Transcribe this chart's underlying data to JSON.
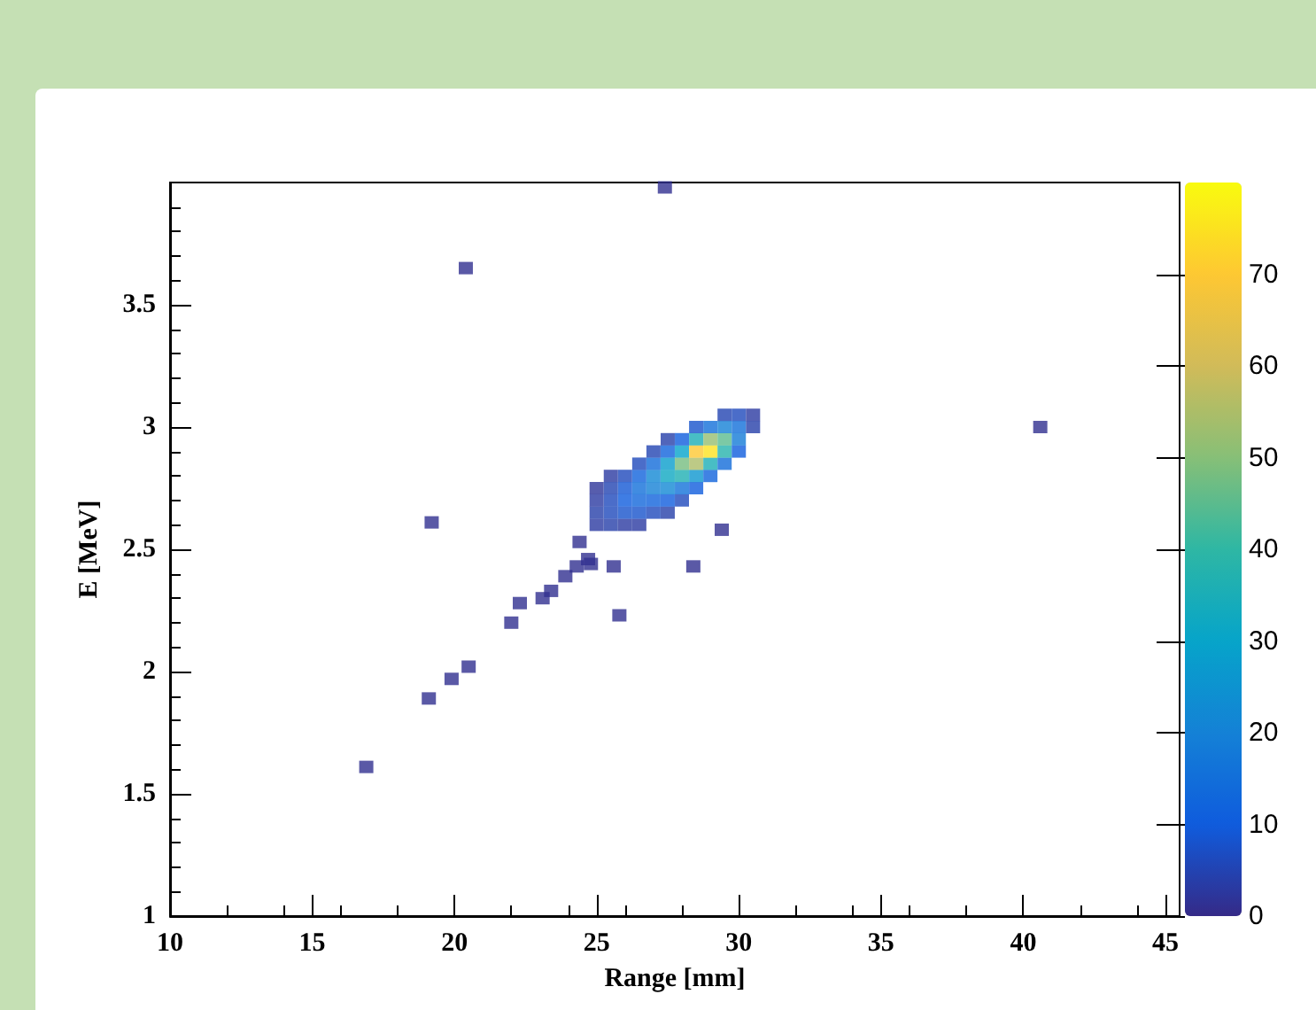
{
  "chart_data": {
    "type": "scatter",
    "xlabel": "Range [mm]",
    "ylabel": "E [MeV]",
    "xlim": [
      10,
      45.5
    ],
    "xticks": [
      10,
      15,
      20,
      25,
      30,
      35,
      40,
      45
    ],
    "ylim": [
      1,
      4
    ],
    "yticks": [
      1,
      1.5,
      2,
      2.5,
      3,
      3.5
    ],
    "clim": [
      0,
      80
    ],
    "cticks": [
      0,
      10,
      20,
      30,
      40,
      50,
      60,
      70
    ],
    "marker": "square",
    "x": [
      25,
      25,
      25,
      25,
      25.5,
      25.5,
      25.5,
      25.5,
      25.5,
      26,
      26,
      26,
      26,
      26,
      26.5,
      26.5,
      26.5,
      26.5,
      26.5,
      26.5,
      27,
      27,
      27,
      27,
      27,
      27,
      27.5,
      27.5,
      27.5,
      27.5,
      27.5,
      27.5,
      27.5,
      28,
      28,
      28,
      28,
      28,
      28,
      28.5,
      28.5,
      28.5,
      28.5,
      28.5,
      28.5,
      29,
      29,
      29,
      29,
      29,
      29.5,
      29.5,
      29.5,
      29.5,
      29.5,
      30,
      30,
      30,
      30,
      30.5,
      30.5,
      27.4,
      20.4,
      40.6,
      19.2,
      28.4,
      29.4,
      25.8,
      24.4,
      24.3,
      23.9,
      23.4,
      23.1,
      22.3,
      22,
      20.5,
      19.9,
      19.1,
      16.9,
      24.8,
      24.7,
      25.6
    ],
    "values": [
      2.6,
      2.65,
      2.7,
      2.75,
      2.6,
      2.65,
      2.7,
      2.75,
      2.8,
      2.6,
      2.65,
      2.7,
      2.75,
      2.8,
      2.6,
      2.65,
      2.7,
      2.75,
      2.8,
      2.85,
      2.65,
      2.7,
      2.75,
      2.8,
      2.85,
      2.9,
      2.65,
      2.7,
      2.75,
      2.8,
      2.85,
      2.9,
      2.95,
      2.7,
      2.75,
      2.8,
      2.85,
      2.9,
      2.95,
      2.75,
      2.8,
      2.85,
      2.9,
      2.95,
      3,
      2.8,
      2.85,
      2.9,
      2.95,
      3,
      2.85,
      2.9,
      2.95,
      3,
      3.05,
      2.9,
      2.95,
      3,
      3.05,
      3,
      3.05,
      3.98,
      3.65,
      3,
      2.61,
      2.43,
      2.58,
      2.23,
      2.53,
      2.43,
      2.39,
      2.33,
      2.3,
      2.28,
      2.2,
      2.02,
      1.97,
      1.89,
      1.61,
      2.44,
      2.46,
      2.43
    ],
    "cvalues": [
      3,
      4,
      3,
      2,
      4,
      6,
      6,
      5,
      3,
      3,
      8,
      10,
      9,
      6,
      3,
      8,
      13,
      15,
      12,
      6,
      6,
      12,
      20,
      22,
      14,
      5,
      4,
      10,
      22,
      32,
      28,
      12,
      4,
      6,
      16,
      36,
      48,
      30,
      10,
      10,
      26,
      55,
      70,
      35,
      8,
      12,
      35,
      75,
      52,
      15,
      14,
      38,
      45,
      20,
      5,
      10,
      18,
      15,
      6,
      4,
      3,
      1,
      1,
      1,
      1,
      1,
      1,
      1,
      1,
      1,
      1,
      1,
      1,
      1,
      1,
      1,
      1,
      1,
      1,
      1,
      1,
      1
    ]
  }
}
